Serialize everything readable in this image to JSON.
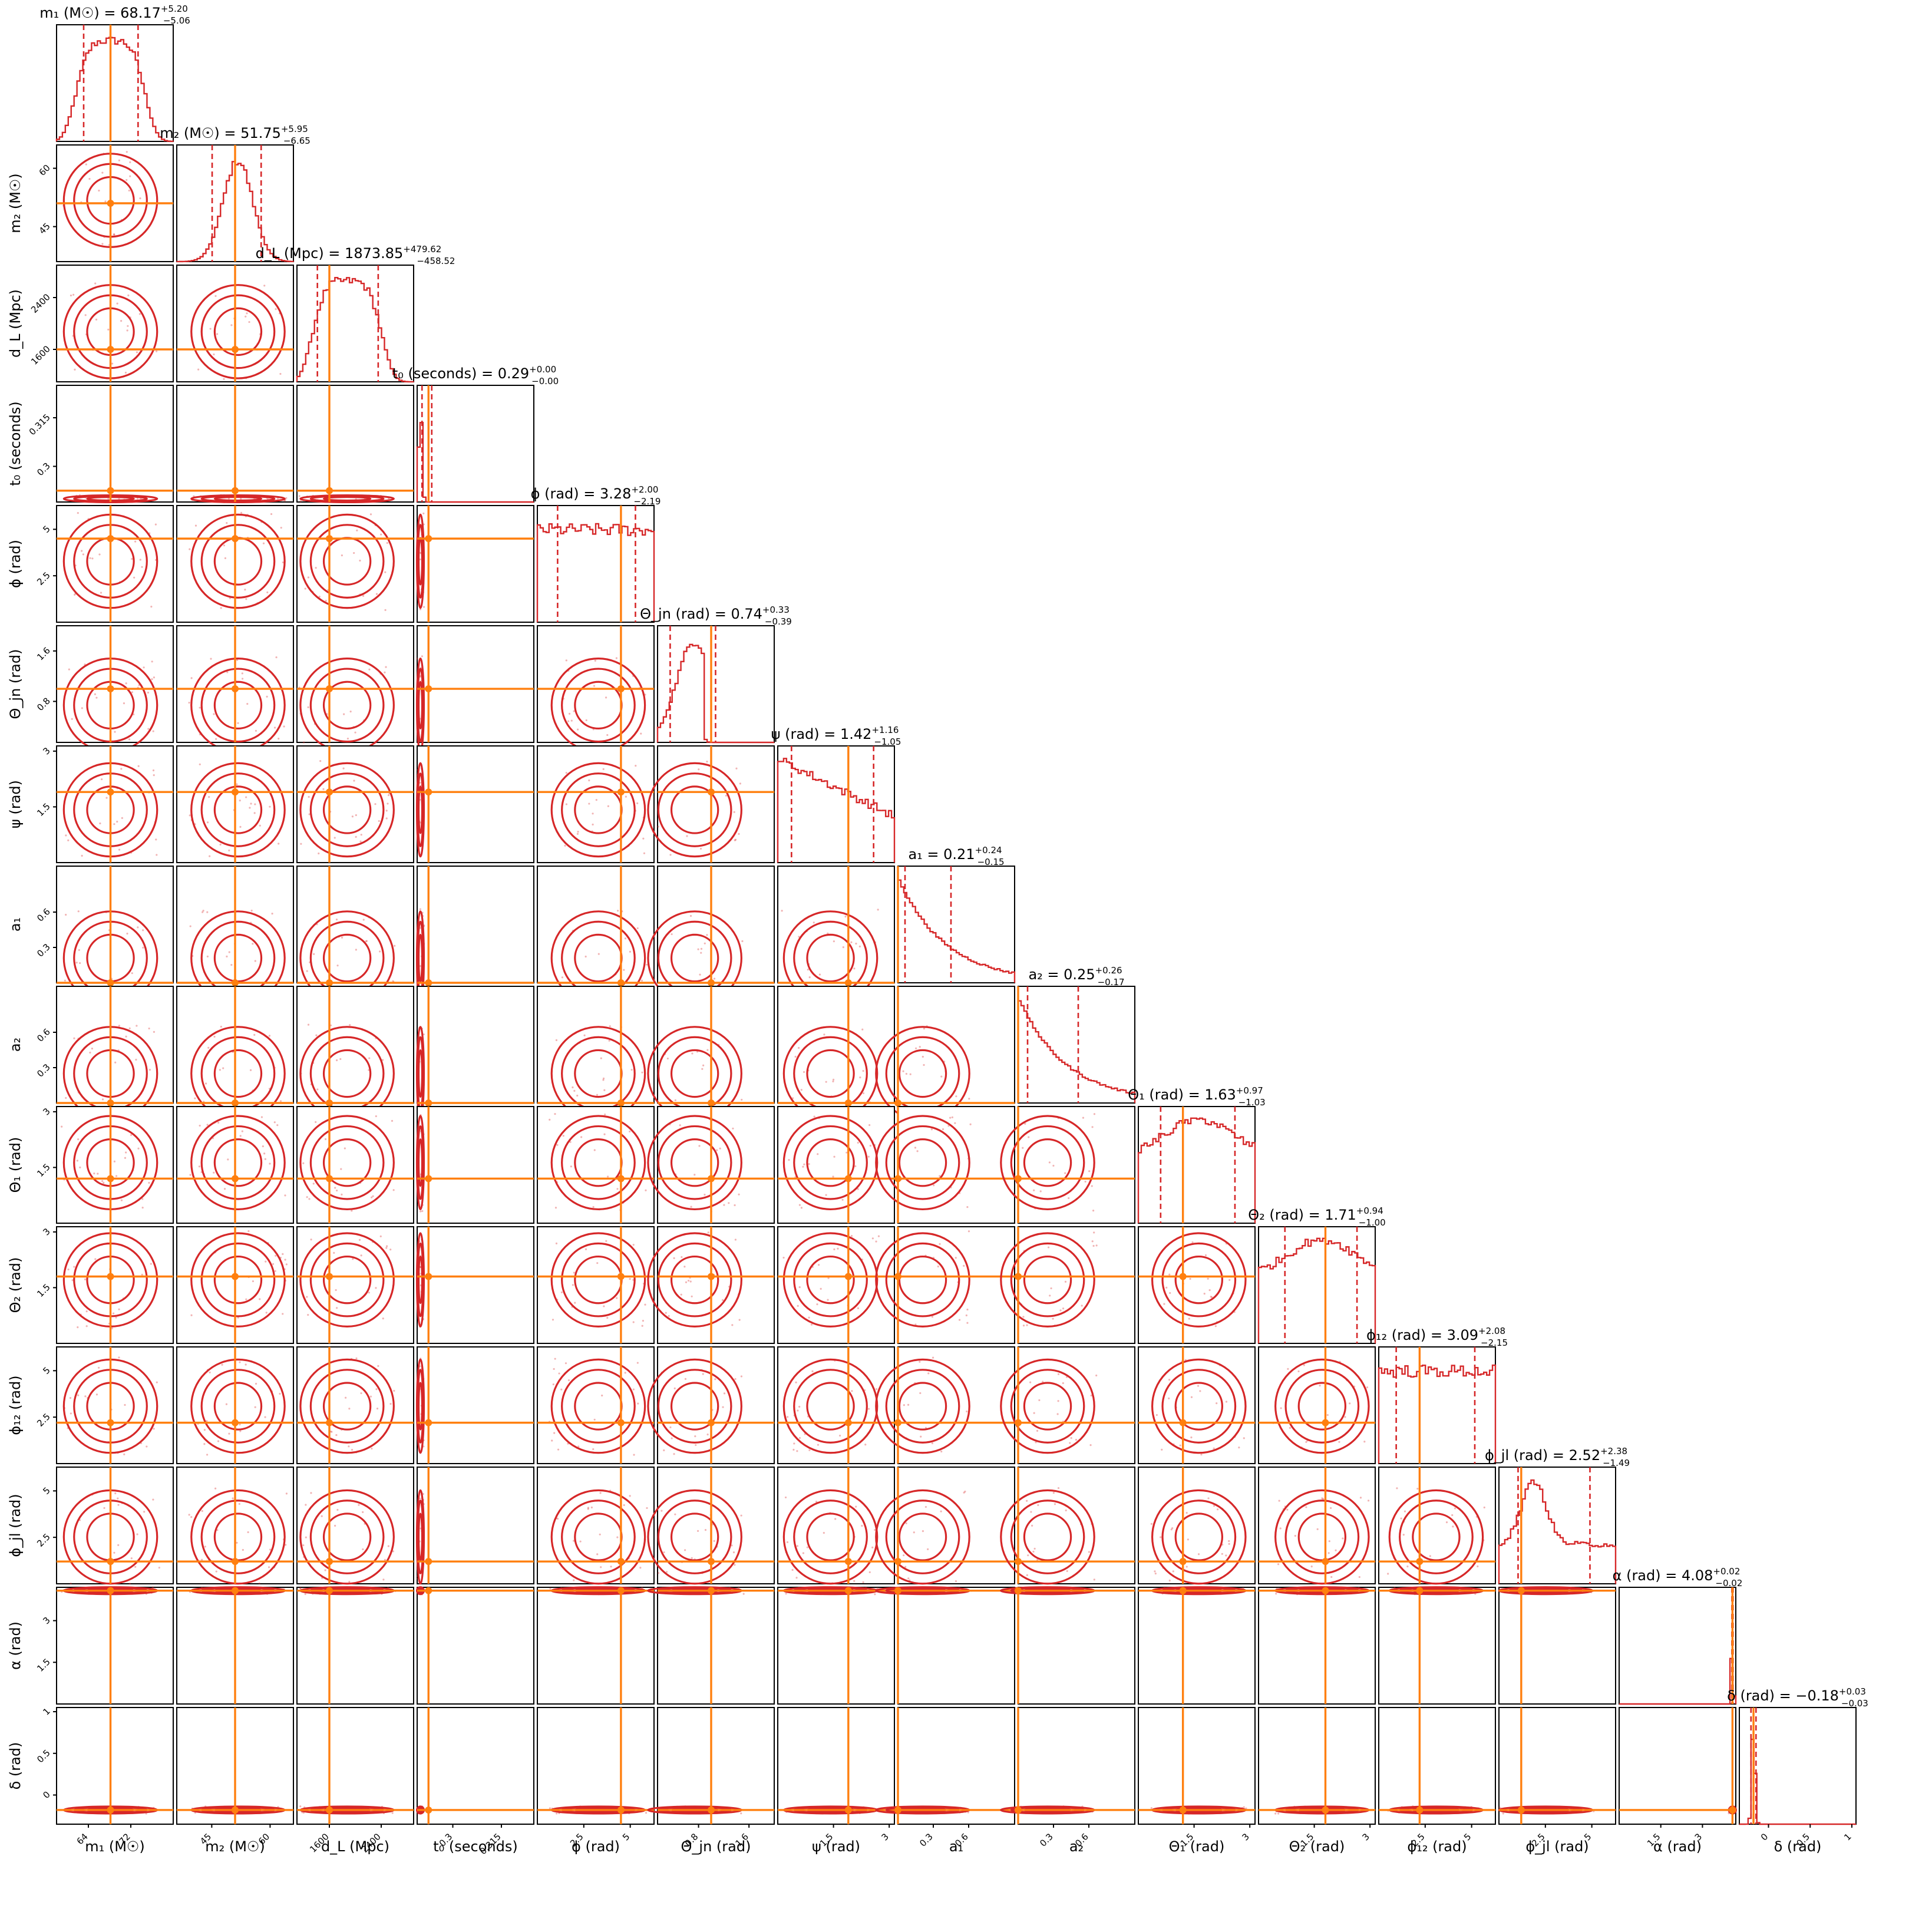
{
  "chart_data": {
    "type": "corner",
    "truth_color": "#ff7f0e",
    "posterior_color": "#d62728",
    "parameters": [
      {
        "label": "m₁ (M☉)",
        "title_main": "m₁ (M☉) = 68.17",
        "plus": "+5.20",
        "minus": "−5.06",
        "median": 68.17,
        "range": [
          58,
          80
        ],
        "truth": 68.17,
        "ticks": [
          64,
          72
        ],
        "hist": "flat-top",
        "q": [
          63.11,
          73.37
        ]
      },
      {
        "label": "m₂ (M☉)",
        "title_main": "m₂ (M☉) = 51.75",
        "plus": "+5.95",
        "minus": "−6.65",
        "median": 51.75,
        "range": [
          36,
          66
        ],
        "truth": 51.0,
        "ticks": [
          45,
          60
        ],
        "hist": "peak",
        "q": [
          45.1,
          57.7
        ]
      },
      {
        "label": "d_L (Mpc)",
        "title_main": "d_L (Mpc) = 1873.85",
        "plus": "+479.62",
        "minus": "−458.52",
        "median": 1873.85,
        "range": [
          1100,
          2900
        ],
        "truth": 1600,
        "ticks": [
          1600,
          2400
        ],
        "hist": "flat-top",
        "q": [
          1415.33,
          2353.47
        ]
      },
      {
        "label": "t₀ (seconds)",
        "title_main": "t₀ (seconds) = 0.29",
        "plus": "+0.00",
        "minus": "−0.00",
        "median": 0.29,
        "range": [
          0.289,
          0.325
        ],
        "truth": 0.2925,
        "ticks": [
          0.3,
          0.315
        ],
        "hist": "spike-low",
        "q": [
          0.2905,
          0.2935
        ]
      },
      {
        "label": "ϕ (rad)",
        "title_main": "ϕ (rad) = 3.28",
        "plus": "+2.00",
        "minus": "−2.19",
        "median": 3.28,
        "range": [
          0,
          6.28
        ],
        "truth": 4.5,
        "ticks": [
          2.5,
          5.0
        ],
        "hist": "uniform",
        "q": [
          1.09,
          5.28
        ]
      },
      {
        "label": "Θ_jn (rad)",
        "title_main": "Θ_jn (rad) = 0.74",
        "plus": "+0.33",
        "minus": "−0.39",
        "median": 0.74,
        "range": [
          0.15,
          2.0
        ],
        "truth": 1.0,
        "ticks": [
          0.8,
          1.6
        ],
        "hist": "rise-cut",
        "q": [
          0.35,
          1.07
        ]
      },
      {
        "label": "ψ (rad)",
        "title_main": "ψ (rad) = 1.42",
        "plus": "+1.16",
        "minus": "−1.05",
        "median": 1.42,
        "range": [
          0,
          3.14
        ],
        "truth": 1.9,
        "ticks": [
          1.5,
          3.0
        ],
        "hist": "slope-down",
        "q": [
          0.37,
          2.58
        ]
      },
      {
        "label": "a₁",
        "title_main": "a₁ = 0.21",
        "plus": "+0.24",
        "minus": "−0.15",
        "median": 0.21,
        "range": [
          0,
          0.99
        ],
        "truth": 0.0,
        "ticks": [
          0.3,
          0.6
        ],
        "hist": "decay",
        "q": [
          0.06,
          0.45
        ]
      },
      {
        "label": "a₂",
        "title_main": "a₂ = 0.25",
        "plus": "+0.26",
        "minus": "−0.17",
        "median": 0.25,
        "range": [
          0,
          0.99
        ],
        "truth": 0.0,
        "ticks": [
          0.3,
          0.6
        ],
        "hist": "decay",
        "q": [
          0.08,
          0.51
        ]
      },
      {
        "label": "Θ₁ (rad)",
        "title_main": "Θ₁ (rad) = 1.63",
        "plus": "+0.97",
        "minus": "−1.03",
        "median": 1.63,
        "range": [
          0,
          3.14
        ],
        "truth": 1.2,
        "ticks": [
          1.5,
          3.0
        ],
        "hist": "broad",
        "q": [
          0.6,
          2.6
        ]
      },
      {
        "label": "Θ₂ (rad)",
        "title_main": "Θ₂ (rad) = 1.71",
        "plus": "+0.94",
        "minus": "−1.00",
        "median": 1.71,
        "range": [
          0,
          3.14
        ],
        "truth": 1.8,
        "ticks": [
          1.5,
          3.0
        ],
        "hist": "broad",
        "q": [
          0.71,
          2.65
        ]
      },
      {
        "label": "ϕ₁₂ (rad)",
        "title_main": "ϕ₁₂ (rad) = 3.09",
        "plus": "+2.08",
        "minus": "−2.15",
        "median": 3.09,
        "range": [
          0,
          6.28
        ],
        "truth": 2.2,
        "ticks": [
          2.5,
          5.0
        ],
        "hist": "uniform",
        "q": [
          0.94,
          5.17
        ]
      },
      {
        "label": "ϕ_jl (rad)",
        "title_main": "ϕ_jl (rad) = 2.52",
        "plus": "+2.38",
        "minus": "−1.49",
        "median": 2.52,
        "range": [
          0,
          6.28
        ],
        "truth": 1.2,
        "ticks": [
          2.5,
          5.0
        ],
        "hist": "peak-left",
        "q": [
          1.03,
          4.9
        ]
      },
      {
        "label": "α (rad)",
        "title_main": "α (rad) = 4.08",
        "plus": "+0.02",
        "minus": "−0.02",
        "median": 4.08,
        "range": [
          0,
          4.2
        ],
        "truth": 4.08,
        "ticks": [
          1.5,
          3.0
        ],
        "hist": "spike-high",
        "q": [
          4.06,
          4.1
        ]
      },
      {
        "label": "δ (rad)",
        "title_main": "δ (rad) = −0.18",
        "plus": "+0.03",
        "minus": "−0.03",
        "median": -0.18,
        "range": [
          -0.35,
          1.05
        ],
        "truth": -0.18,
        "ticks": [
          0.0,
          0.5,
          1.0
        ],
        "hist": "spike-low",
        "q": [
          -0.21,
          -0.15
        ]
      }
    ],
    "y_tick_overrides": {
      "1": [
        45,
        60
      ],
      "2": [
        1600,
        2400
      ],
      "3": [
        0.3,
        0.315
      ],
      "4": [
        2.5,
        5.0
      ],
      "5": [
        0.8,
        1.6
      ],
      "6": [
        1.5,
        3.0
      ],
      "7": [
        0.3,
        0.6
      ],
      "8": [
        0.3,
        0.6
      ],
      "9": [
        1.5,
        3.0
      ],
      "10": [
        1.5,
        3.0
      ],
      "11": [
        2.5,
        5.0
      ],
      "12": [
        2.5,
        5.0
      ],
      "13": [
        1.5,
        3.0
      ],
      "14": [
        0.0,
        0.5,
        1.0
      ]
    }
  }
}
